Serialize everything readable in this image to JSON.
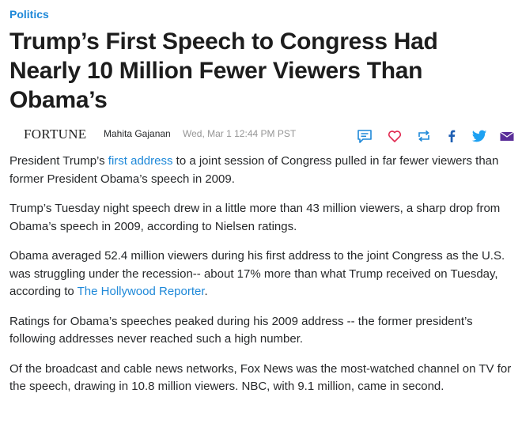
{
  "article": {
    "category": "Politics",
    "headline": "Trump’s First Speech to Congress Had Nearly 10 Million Fewer Viewers Than Obama’s",
    "publisher": "FORTUNE",
    "author": "Mahita Gajanan",
    "date": "Wed, Mar 1 12:44 PM PST",
    "p1": {
      "before": "President Trump’s ",
      "link": "first address",
      "after": " to a joint session of Congress pulled in far fewer viewers than former President Obama’s speech in 2009."
    },
    "p2": "Trump’s Tuesday night speech drew in a little more than 43 million viewers, a sharp drop from Obama’s speech in 2009, according to Nielsen ratings.",
    "p3": {
      "before": "Obama averaged 52.4 million viewers during his first address to the joint Congress as the U.S. was struggling under the recession-- about 17% more than what Trump received on Tuesday, according to ",
      "link": "The Hollywood Reporter",
      "after": "."
    },
    "p4": "Ratings for Obama’s speeches peaked during his 2009 address -- the former president’s following addresses never reached such a high number.",
    "p5": "Of the broadcast and cable news networks, Fox News was the most-watched channel on TV for the speech, drawing in 10.8 million viewers. NBC, with 9.1 million, came in second."
  },
  "share": {
    "icons": [
      "comment-icon",
      "heart-icon",
      "retweet-icon",
      "facebook-icon",
      "twitter-icon",
      "mail-icon"
    ]
  },
  "colors": {
    "link": "#1e88d8",
    "share_blue": "#1e88d8",
    "heart": "#e0284f",
    "facebook": "#3b5998",
    "twitter": "#1da1f2",
    "mail": "#5a2e98",
    "text": "#26282a",
    "meta": "#959595"
  }
}
